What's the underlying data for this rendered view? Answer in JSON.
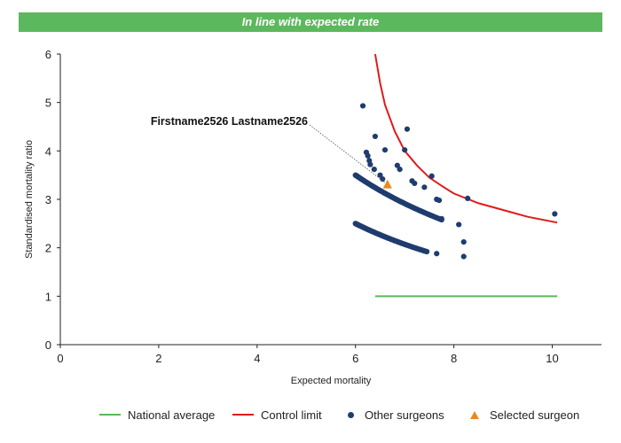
{
  "title": "In line with expected rate",
  "colors": {
    "title_bar": "#5cb85c",
    "national_average": "#5cb85c",
    "control_limit": "#e01b1b",
    "other_surgeons": "#1f3c6e",
    "selected_surgeon": "#e8891f"
  },
  "chart_data": {
    "type": "scatter",
    "xlabel": "Expected mortality",
    "ylabel": "Standardised mortality ratio",
    "xlim": [
      0,
      11
    ],
    "ylim": [
      0,
      6
    ],
    "xticks": [
      0,
      2,
      4,
      6,
      8,
      10
    ],
    "yticks": [
      0,
      1,
      2,
      3,
      4,
      5,
      6
    ],
    "grid": false,
    "legend_position": "bottom",
    "annotation": "Firstname2526 Lastname2526",
    "series": [
      {
        "name": "National average",
        "type": "line",
        "x": [
          6.4,
          10.1
        ],
        "y": [
          1.0,
          1.0
        ]
      },
      {
        "name": "Control limit",
        "type": "line",
        "x": [
          6.4,
          6.5,
          6.6,
          6.8,
          7.0,
          7.25,
          7.5,
          7.75,
          8.0,
          8.5,
          9.0,
          9.5,
          10.1
        ],
        "y": [
          6.0,
          5.4,
          4.95,
          4.4,
          4.0,
          3.7,
          3.45,
          3.28,
          3.12,
          2.92,
          2.78,
          2.64,
          2.52
        ]
      },
      {
        "name": "Other surgeons",
        "type": "scatter",
        "x": [
          6.15,
          6.22,
          6.25,
          6.28,
          6.3,
          6.38,
          6.4,
          6.5,
          6.55,
          6.6,
          6.85,
          6.9,
          7.05,
          7.0,
          7.15,
          7.2,
          7.4,
          7.55,
          7.65,
          7.7,
          7.75,
          7.65,
          8.1,
          8.2,
          8.28,
          8.2,
          10.05
        ],
        "y": [
          4.93,
          3.97,
          3.9,
          3.8,
          3.72,
          3.62,
          4.3,
          3.5,
          3.42,
          4.02,
          3.7,
          3.62,
          4.45,
          4.02,
          3.38,
          3.33,
          3.25,
          3.48,
          3.0,
          2.98,
          2.6,
          1.88,
          2.48,
          2.12,
          3.02,
          1.82,
          2.7
        ]
      },
      {
        "name": "Other surgeons (upper band)",
        "type": "scatter-band",
        "x": [
          6.0,
          7.75
        ],
        "y_at_start": 3.5,
        "y_at_end": 2.58
      },
      {
        "name": "Other surgeons (lower band)",
        "type": "scatter-band",
        "x": [
          6.0,
          7.45
        ],
        "y_at_start": 2.5,
        "y_at_end": 1.92
      },
      {
        "name": "Selected surgeon",
        "type": "scatter",
        "x": [
          6.65
        ],
        "y": [
          3.3
        ]
      }
    ]
  },
  "legend": [
    {
      "label": "National average",
      "marker": "line"
    },
    {
      "label": "Control limit",
      "marker": "line"
    },
    {
      "label": "Other surgeons",
      "marker": "dot"
    },
    {
      "label": "Selected surgeon",
      "marker": "triangle"
    }
  ]
}
